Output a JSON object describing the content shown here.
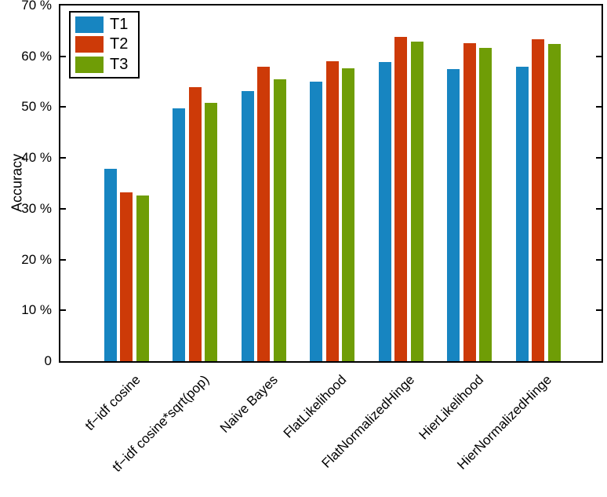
{
  "chart_data": {
    "type": "bar",
    "title": "",
    "ylabel": "Accuracy",
    "xlabel": "",
    "ylim": [
      0,
      70
    ],
    "grid": false,
    "legend_position": "top-left",
    "axis_color": "#000000",
    "background_color": "#FFFFFF",
    "yticks": [
      {
        "value": 70,
        "label": "70 %"
      },
      {
        "value": 60,
        "label": "60 %"
      },
      {
        "value": 50,
        "label": "50 %"
      },
      {
        "value": 40,
        "label": "40 %"
      },
      {
        "value": 30,
        "label": "30 %"
      },
      {
        "value": 20,
        "label": "20 %"
      },
      {
        "value": 10,
        "label": "10 %"
      },
      {
        "value": 0,
        "label": "0"
      }
    ],
    "categories": [
      "tf−idf cosine",
      "tf−idf cosine*sqrt(pop)",
      "Naive Bayes",
      "FlatLikelihood",
      "FlatNormalizedHinge",
      "HierLikelihood",
      "HierNormalizedHinge"
    ],
    "series": [
      {
        "name": "T1",
        "color": "#1785C1",
        "values": [
          37.9,
          49.8,
          53.1,
          55.0,
          58.9,
          57.5,
          58.0
        ]
      },
      {
        "name": "T2",
        "color": "#CD3A08",
        "values": [
          33.2,
          54.0,
          58.0,
          59.0,
          63.8,
          62.6,
          63.4
        ]
      },
      {
        "name": "T3",
        "color": "#6F9D06",
        "values": [
          32.6,
          50.9,
          55.5,
          57.6,
          62.9,
          61.6,
          62.4
        ]
      }
    ]
  }
}
